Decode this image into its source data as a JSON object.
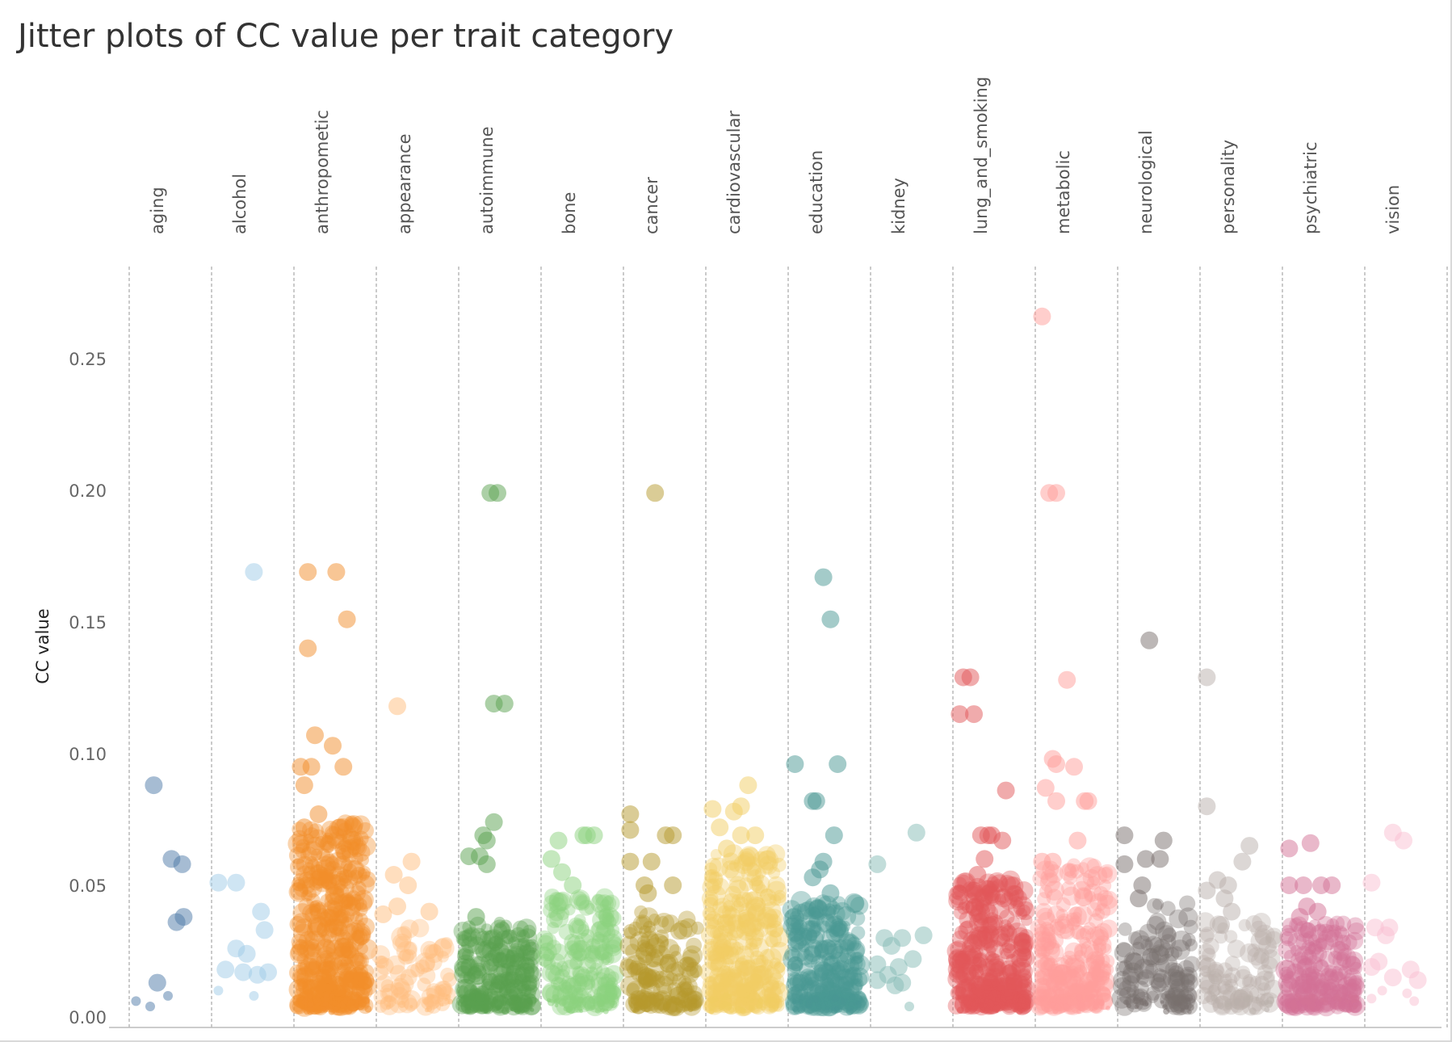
{
  "chart_data": {
    "type": "scatter",
    "title": "Jitter plots of CC value per trait category",
    "ylabel": "CC value",
    "xlabel": "",
    "ylim": [
      0,
      0.28
    ],
    "yticks": [
      0.0,
      0.05,
      0.1,
      0.15,
      0.2,
      0.25
    ],
    "ytick_labels": [
      "0.00",
      "0.05",
      "0.10",
      "0.15",
      "0.20",
      "0.25"
    ],
    "grid": false,
    "legend": "none",
    "categories": [
      "aging",
      "alcohol",
      "anthropometic",
      "appearance",
      "autoimmune",
      "bone",
      "cancer",
      "cardiovascular",
      "education",
      "kidney",
      "lung_and_smoking",
      "metabolic",
      "neurological",
      "personality",
      "psychiatric",
      "vision"
    ],
    "colors": [
      "#4e79a7",
      "#a0cbe8",
      "#f28e2b",
      "#ffbe7d",
      "#59a14f",
      "#8cd17d",
      "#b6992d",
      "#f1ce63",
      "#499894",
      "#86bcb6",
      "#e15759",
      "#ff9d9a",
      "#79706e",
      "#bab0ac",
      "#d37295",
      "#fabfd2"
    ],
    "series": [
      {
        "category": "aging",
        "points": [
          [
            0.3,
            0.088
          ],
          [
            0.55,
            0.06
          ],
          [
            0.7,
            0.058
          ],
          [
            0.72,
            0.038
          ],
          [
            0.62,
            0.036
          ],
          [
            0.35,
            0.013
          ],
          [
            0.5,
            0.008
          ],
          [
            0.05,
            0.006
          ],
          [
            0.25,
            0.004
          ]
        ],
        "density": {
          "count": 0,
          "low": 0.0,
          "high": 0.0
        }
      },
      {
        "category": "alcohol",
        "points": [
          [
            0.55,
            0.169
          ],
          [
            0.05,
            0.051
          ],
          [
            0.3,
            0.051
          ],
          [
            0.65,
            0.04
          ],
          [
            0.7,
            0.033
          ],
          [
            0.3,
            0.026
          ],
          [
            0.45,
            0.024
          ],
          [
            0.15,
            0.018
          ],
          [
            0.4,
            0.017
          ],
          [
            0.6,
            0.016
          ],
          [
            0.75,
            0.017
          ],
          [
            0.05,
            0.01
          ],
          [
            0.55,
            0.008
          ]
        ],
        "density": {
          "count": 0,
          "low": 0.0,
          "high": 0.0
        }
      },
      {
        "category": "anthropometic",
        "points": [
          [
            0.15,
            0.169
          ],
          [
            0.55,
            0.169
          ],
          [
            0.7,
            0.151
          ],
          [
            0.15,
            0.14
          ],
          [
            0.25,
            0.107
          ],
          [
            0.5,
            0.103
          ],
          [
            0.05,
            0.095
          ],
          [
            0.2,
            0.095
          ],
          [
            0.65,
            0.095
          ],
          [
            0.1,
            0.088
          ],
          [
            0.3,
            0.077
          ],
          [
            0.6,
            0.072
          ],
          [
            0.1,
            0.072
          ]
        ],
        "density": {
          "count": 420,
          "low": 0.004,
          "high": 0.074
        }
      },
      {
        "category": "appearance",
        "points": [
          [
            0.25,
            0.118
          ],
          [
            0.45,
            0.059
          ],
          [
            0.2,
            0.054
          ],
          [
            0.4,
            0.05
          ],
          [
            0.05,
            0.039
          ],
          [
            0.7,
            0.04
          ],
          [
            0.25,
            0.042
          ]
        ],
        "density": {
          "count": 70,
          "low": 0.004,
          "high": 0.034
        }
      },
      {
        "category": "autoimmune",
        "points": [
          [
            0.4,
            0.199
          ],
          [
            0.5,
            0.199
          ],
          [
            0.45,
            0.119
          ],
          [
            0.6,
            0.119
          ],
          [
            0.45,
            0.074
          ],
          [
            0.3,
            0.069
          ],
          [
            0.35,
            0.067
          ],
          [
            0.1,
            0.061
          ],
          [
            0.25,
            0.061
          ],
          [
            0.35,
            0.058
          ],
          [
            0.2,
            0.038
          ]
        ],
        "density": {
          "count": 200,
          "low": 0.004,
          "high": 0.036
        }
      },
      {
        "category": "bone",
        "points": [
          [
            0.55,
            0.069
          ],
          [
            0.6,
            0.069
          ],
          [
            0.7,
            0.069
          ],
          [
            0.2,
            0.067
          ],
          [
            0.1,
            0.06
          ],
          [
            0.25,
            0.055
          ],
          [
            0.4,
            0.05
          ]
        ],
        "density": {
          "count": 170,
          "low": 0.004,
          "high": 0.046
        }
      },
      {
        "category": "cancer",
        "points": [
          [
            0.4,
            0.199
          ],
          [
            0.05,
            0.077
          ],
          [
            0.05,
            0.071
          ],
          [
            0.55,
            0.069
          ],
          [
            0.65,
            0.069
          ],
          [
            0.05,
            0.059
          ],
          [
            0.35,
            0.059
          ],
          [
            0.25,
            0.05
          ],
          [
            0.65,
            0.05
          ],
          [
            0.3,
            0.047
          ]
        ],
        "density": {
          "count": 130,
          "low": 0.004,
          "high": 0.04
        }
      },
      {
        "category": "cardiovascular",
        "points": [
          [
            0.55,
            0.088
          ],
          [
            0.05,
            0.079
          ],
          [
            0.35,
            0.078
          ],
          [
            0.45,
            0.08
          ],
          [
            0.15,
            0.072
          ],
          [
            0.45,
            0.069
          ],
          [
            0.65,
            0.069
          ],
          [
            0.25,
            0.064
          ]
        ],
        "density": {
          "count": 300,
          "low": 0.004,
          "high": 0.062
        }
      },
      {
        "category": "education",
        "points": [
          [
            0.45,
            0.167
          ],
          [
            0.55,
            0.151
          ],
          [
            0.05,
            0.096
          ],
          [
            0.65,
            0.096
          ],
          [
            0.3,
            0.082
          ],
          [
            0.35,
            0.082
          ],
          [
            0.6,
            0.069
          ],
          [
            0.45,
            0.059
          ],
          [
            0.4,
            0.056
          ],
          [
            0.3,
            0.053
          ],
          [
            0.55,
            0.047
          ]
        ],
        "density": {
          "count": 240,
          "low": 0.004,
          "high": 0.044
        }
      },
      {
        "category": "kidney",
        "points": [
          [
            0.6,
            0.07
          ],
          [
            0.05,
            0.058
          ],
          [
            0.7,
            0.031
          ],
          [
            0.4,
            0.03
          ],
          [
            0.15,
            0.03
          ],
          [
            0.25,
            0.027
          ],
          [
            0.55,
            0.022
          ],
          [
            0.05,
            0.02
          ],
          [
            0.35,
            0.019
          ],
          [
            0.2,
            0.016
          ],
          [
            0.4,
            0.013
          ],
          [
            0.05,
            0.014
          ],
          [
            0.3,
            0.012
          ],
          [
            0.5,
            0.004
          ]
        ],
        "density": {
          "count": 0,
          "low": 0.0,
          "high": 0.0
        }
      },
      {
        "category": "lung_and_smoking",
        "points": [
          [
            0.1,
            0.129
          ],
          [
            0.2,
            0.129
          ],
          [
            0.05,
            0.115
          ],
          [
            0.25,
            0.115
          ],
          [
            0.7,
            0.086
          ],
          [
            0.35,
            0.069
          ],
          [
            0.45,
            0.069
          ],
          [
            0.5,
            0.069
          ],
          [
            0.65,
            0.067
          ],
          [
            0.4,
            0.06
          ],
          [
            0.3,
            0.054
          ],
          [
            0.25,
            0.048
          ]
        ],
        "density": {
          "count": 330,
          "low": 0.004,
          "high": 0.052
        }
      },
      {
        "category": "metabolic",
        "points": [
          [
            0.05,
            0.266
          ],
          [
            0.15,
            0.199
          ],
          [
            0.25,
            0.199
          ],
          [
            0.4,
            0.128
          ],
          [
            0.2,
            0.098
          ],
          [
            0.25,
            0.096
          ],
          [
            0.5,
            0.095
          ],
          [
            0.1,
            0.087
          ],
          [
            0.25,
            0.082
          ],
          [
            0.65,
            0.082
          ],
          [
            0.7,
            0.082
          ],
          [
            0.55,
            0.067
          ],
          [
            0.05,
            0.059
          ],
          [
            0.2,
            0.059
          ]
        ],
        "density": {
          "count": 260,
          "low": 0.004,
          "high": 0.058
        }
      },
      {
        "category": "neurological",
        "points": [
          [
            0.4,
            0.143
          ],
          [
            0.05,
            0.069
          ],
          [
            0.6,
            0.067
          ],
          [
            0.05,
            0.058
          ],
          [
            0.35,
            0.06
          ],
          [
            0.55,
            0.06
          ],
          [
            0.3,
            0.05
          ],
          [
            0.25,
            0.045
          ]
        ],
        "density": {
          "count": 110,
          "low": 0.004,
          "high": 0.044
        }
      },
      {
        "category": "personality",
        "points": [
          [
            0.05,
            0.129
          ],
          [
            0.05,
            0.08
          ],
          [
            0.65,
            0.065
          ],
          [
            0.55,
            0.059
          ],
          [
            0.2,
            0.052
          ],
          [
            0.35,
            0.05
          ],
          [
            0.05,
            0.048
          ],
          [
            0.3,
            0.045
          ],
          [
            0.4,
            0.04
          ],
          [
            0.25,
            0.035
          ]
        ],
        "density": {
          "count": 90,
          "low": 0.004,
          "high": 0.036
        }
      },
      {
        "category": "psychiatric",
        "points": [
          [
            0.35,
            0.066
          ],
          [
            0.05,
            0.064
          ],
          [
            0.05,
            0.05
          ],
          [
            0.25,
            0.05
          ],
          [
            0.5,
            0.05
          ],
          [
            0.65,
            0.05
          ],
          [
            0.3,
            0.042
          ],
          [
            0.45,
            0.04
          ],
          [
            0.2,
            0.038
          ]
        ],
        "density": {
          "count": 180,
          "low": 0.004,
          "high": 0.036
        }
      },
      {
        "category": "vision",
        "points": [
          [
            0.35,
            0.07
          ],
          [
            0.5,
            0.067
          ],
          [
            0.05,
            0.051
          ],
          [
            0.1,
            0.034
          ],
          [
            0.25,
            0.031
          ],
          [
            0.3,
            0.034
          ],
          [
            0.15,
            0.021
          ],
          [
            0.05,
            0.019
          ],
          [
            0.35,
            0.015
          ],
          [
            0.6,
            0.018
          ],
          [
            0.7,
            0.014
          ],
          [
            0.2,
            0.01
          ],
          [
            0.55,
            0.009
          ],
          [
            0.05,
            0.007
          ],
          [
            0.65,
            0.006
          ]
        ],
        "density": {
          "count": 0,
          "low": 0.0,
          "high": 0.0
        }
      }
    ]
  }
}
